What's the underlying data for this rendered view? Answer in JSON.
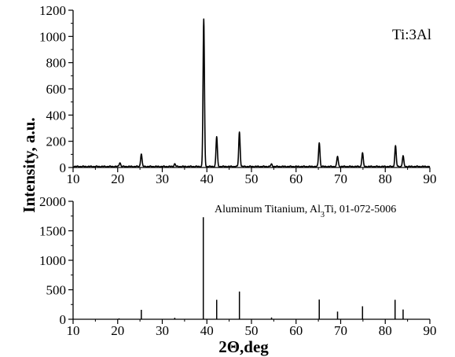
{
  "chart_data": {
    "type": "line",
    "xlabel": "2Θ,deg",
    "ylabel": "Intensity, a.u.",
    "panels": [
      {
        "kind": "measured-pattern",
        "label": "Ti:3Al",
        "xlim": [
          10,
          90
        ],
        "ylim": [
          0,
          1200
        ],
        "xticks": [
          10,
          20,
          30,
          40,
          50,
          60,
          70,
          80,
          90
        ],
        "yticks": [
          0,
          200,
          400,
          600,
          800,
          1000,
          1200
        ],
        "baseline": 8,
        "peaks": [
          {
            "x": 20.5,
            "y": 38
          },
          {
            "x": 25.3,
            "y": 105
          },
          {
            "x": 32.8,
            "y": 28
          },
          {
            "x": 39.3,
            "y": 1130
          },
          {
            "x": 42.2,
            "y": 235
          },
          {
            "x": 47.3,
            "y": 270
          },
          {
            "x": 54.5,
            "y": 25
          },
          {
            "x": 65.2,
            "y": 190
          },
          {
            "x": 69.3,
            "y": 85
          },
          {
            "x": 74.9,
            "y": 112
          },
          {
            "x": 82.3,
            "y": 165
          },
          {
            "x": 84.0,
            "y": 88
          }
        ]
      },
      {
        "kind": "reference-sticks",
        "label_parts": [
          "Aluminum Titanium, Al",
          "3",
          "Ti, 01-072-5006"
        ],
        "xlim": [
          10,
          90
        ],
        "ylim": [
          0,
          2000
        ],
        "xticks": [
          10,
          20,
          30,
          40,
          50,
          60,
          70,
          80,
          90
        ],
        "yticks": [
          0,
          500,
          1000,
          1500,
          2000
        ],
        "sticks": [
          {
            "x": 20.3,
            "y": 15
          },
          {
            "x": 25.3,
            "y": 160
          },
          {
            "x": 32.8,
            "y": 25
          },
          {
            "x": 39.2,
            "y": 1730
          },
          {
            "x": 42.2,
            "y": 330
          },
          {
            "x": 47.3,
            "y": 470
          },
          {
            "x": 54.5,
            "y": 30
          },
          {
            "x": 65.2,
            "y": 335
          },
          {
            "x": 69.3,
            "y": 130
          },
          {
            "x": 74.9,
            "y": 220
          },
          {
            "x": 82.2,
            "y": 330
          },
          {
            "x": 84.0,
            "y": 165
          }
        ]
      }
    ]
  }
}
